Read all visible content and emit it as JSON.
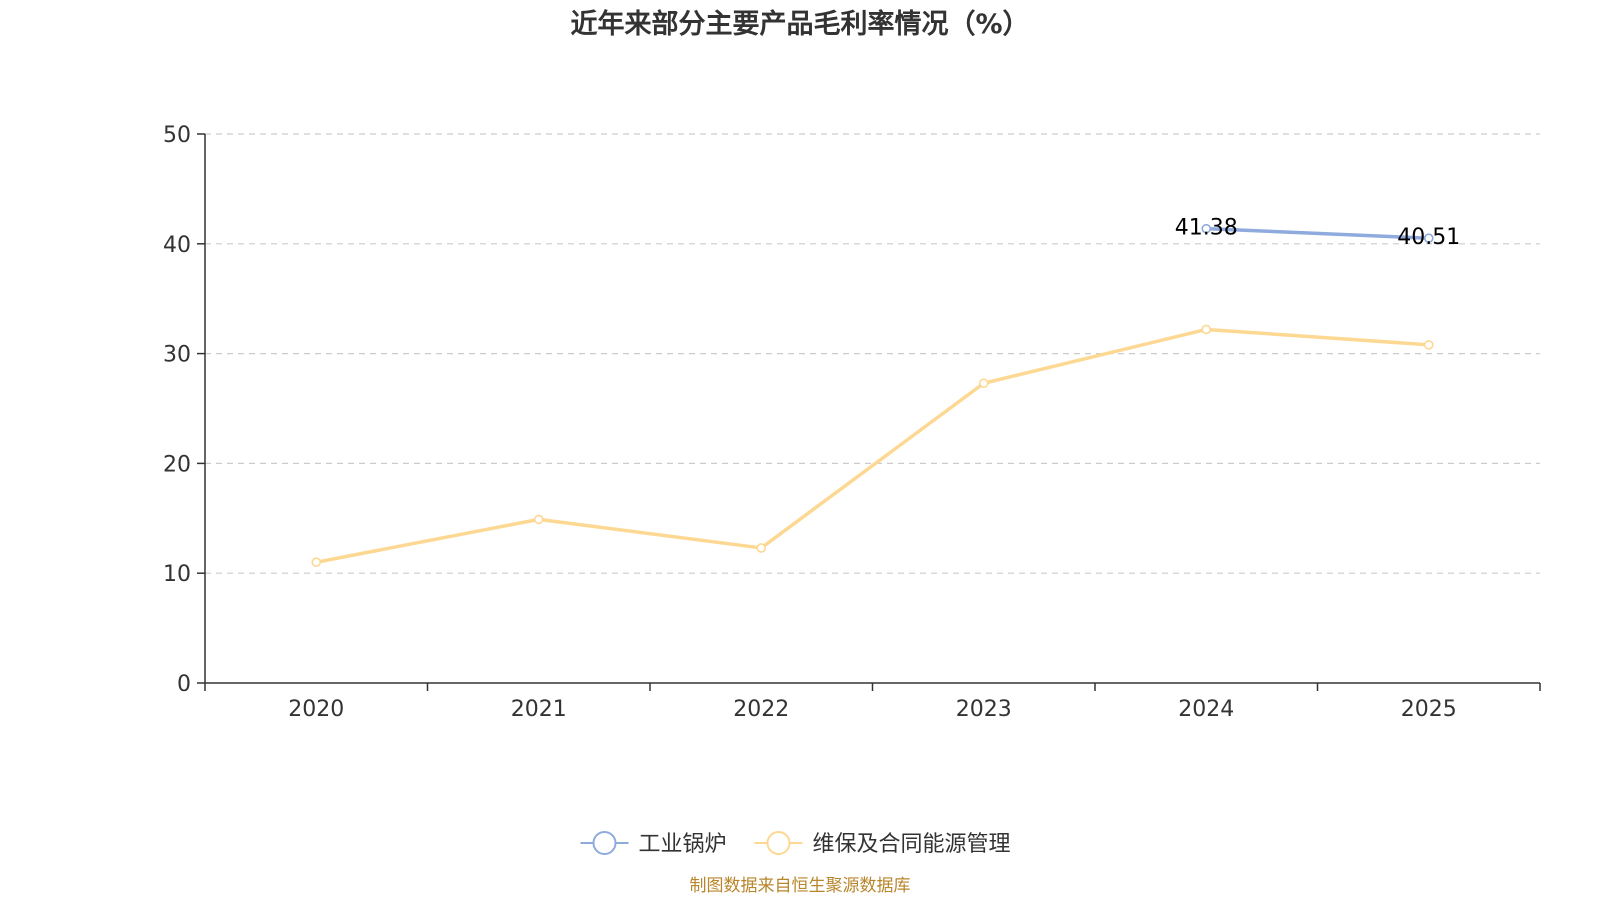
{
  "chart_data": {
    "type": "line",
    "title": "近年来部分主要产品毛利率情况（%）",
    "categories": [
      "2020",
      "2021",
      "2022",
      "2023",
      "2024",
      "2025"
    ],
    "ylim": [
      0,
      50
    ],
    "yticks": [
      0,
      10,
      20,
      30,
      40,
      50
    ],
    "ytick_labels": [
      "0",
      "10",
      "20",
      "30",
      "40",
      "50"
    ],
    "grid": true,
    "legend_position": "bottom-center",
    "series": [
      {
        "name": "工业锅炉",
        "color": "#8faadc",
        "values": [
          null,
          null,
          null,
          null,
          41.38,
          40.51
        ],
        "labels": [
          "",
          "",
          "",
          "",
          "41.38",
          "40.51"
        ]
      },
      {
        "name": "维保及合同能源管理",
        "color": "#fdd893",
        "values": [
          11.0,
          14.9,
          12.3,
          27.3,
          32.2,
          30.8
        ],
        "labels": [
          "",
          "",
          "",
          "",
          "",
          ""
        ]
      }
    ],
    "source": "制图数据来自恒生聚源数据库"
  }
}
